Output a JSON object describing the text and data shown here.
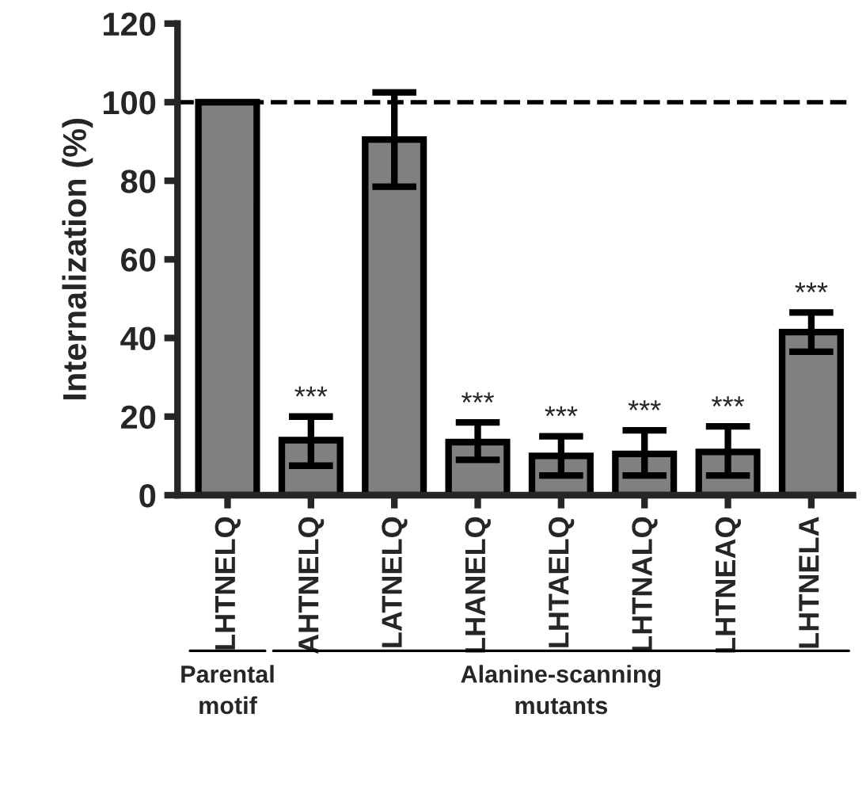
{
  "chart_data": {
    "type": "bar",
    "ylabel": "Internalization (%)",
    "categories": [
      "LHTNELQ",
      "AHTNELQ",
      "LATNELQ",
      "LHANELQ",
      "LHTAELQ",
      "LHTNALQ",
      "LHTNEAQ",
      "LHTNELA"
    ],
    "values": [
      100,
      14,
      90.5,
      13.5,
      10,
      10.5,
      11,
      41.5
    ],
    "errors": [
      null,
      [
        7.5,
        20
      ],
      [
        78.5,
        102.5
      ],
      [
        9,
        18.5
      ],
      [
        5,
        15
      ],
      [
        5,
        16.5
      ],
      [
        5,
        17.5
      ],
      [
        36.5,
        46.5
      ]
    ],
    "color": "#808080",
    "ylim": [
      0,
      120
    ],
    "yticks": [
      0,
      20,
      40,
      60,
      80,
      100,
      120
    ],
    "ref_lines": [
      {
        "axis": "y",
        "value": 100,
        "line_style": "dashed",
        "color": "#000000"
      }
    ],
    "annotations": [
      {
        "text": "***",
        "x": "AHTNELQ",
        "y": 20
      },
      {
        "text": "***",
        "x": "LHANELQ",
        "y": 18.5
      },
      {
        "text": "***",
        "x": "LHTAELQ",
        "y": 15
      },
      {
        "text": "***",
        "x": "LHTNALQ",
        "y": 16.5
      },
      {
        "text": "***",
        "x": "LHTNEAQ",
        "y": 17.5
      },
      {
        "text": "***",
        "x": "LHTNELA",
        "y": 46.5
      },
      "Parental\nmotif",
      "Alanine-scanning\nmutants"
    ],
    "grid": false,
    "legend": false
  }
}
